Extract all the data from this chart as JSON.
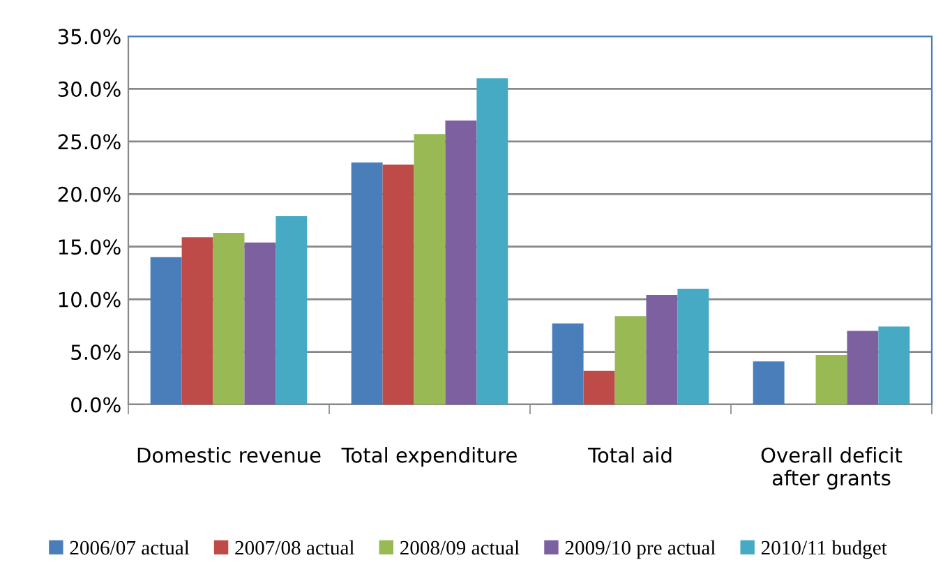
{
  "chart_data": {
    "type": "bar",
    "categories": [
      "Domestic revenue",
      "Total expenditure",
      "Total aid",
      "Overall deficit\nafter grants"
    ],
    "series": [
      {
        "name": "2006/07 actual",
        "color": "#4a7ebb",
        "values": [
          14.0,
          23.0,
          7.7,
          4.1
        ]
      },
      {
        "name": "2007/08 actual",
        "color": "#be4b48",
        "values": [
          15.9,
          22.8,
          3.2,
          null
        ]
      },
      {
        "name": "2008/09 actual",
        "color": "#98b954",
        "values": [
          16.3,
          25.7,
          8.4,
          4.7
        ]
      },
      {
        "name": "2009/10 pre actual",
        "color": "#7d60a0",
        "values": [
          15.4,
          27.0,
          10.4,
          7.0
        ]
      },
      {
        "name": "2010/11 budget",
        "color": "#46aac5",
        "values": [
          17.9,
          31.0,
          11.0,
          7.4
        ]
      }
    ],
    "ylim": [
      0,
      35
    ],
    "yticks": [
      {
        "value": 0,
        "label": "0.0%"
      },
      {
        "value": 5,
        "label": "5.0%"
      },
      {
        "value": 10,
        "label": "10.0%"
      },
      {
        "value": 15,
        "label": "15.0%"
      },
      {
        "value": 20,
        "label": "20.0%"
      },
      {
        "value": 25,
        "label": "25.0%"
      },
      {
        "value": 30,
        "label": "30.0%"
      },
      {
        "value": 35,
        "label": "35.0%"
      }
    ],
    "grid": "y",
    "legend": "bottom"
  }
}
